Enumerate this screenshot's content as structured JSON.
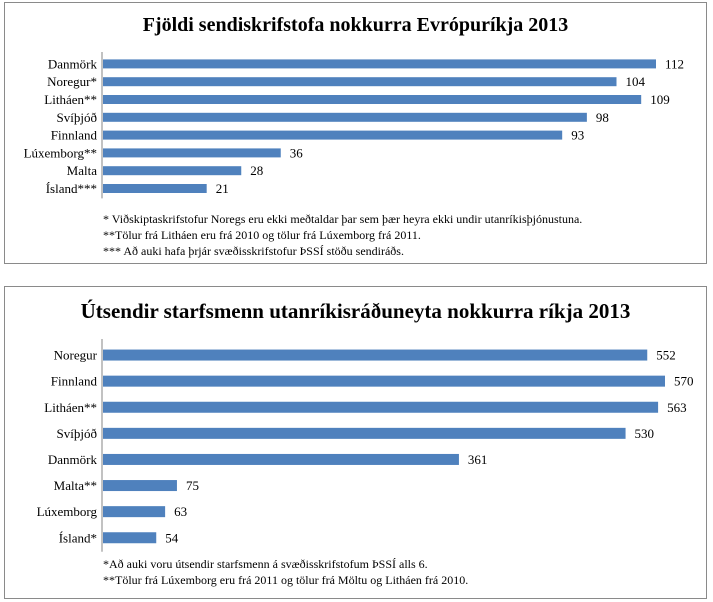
{
  "chart_data": [
    {
      "type": "bar",
      "orientation": "horizontal",
      "title": "Fjöldi sendiskrifstofa nokkurra Evrópuríkja 2013",
      "categories": [
        "Danmörk",
        "Noregur*",
        "Litháen**",
        "Svíþjóð",
        "Finnland",
        "Lúxemborg**",
        "Malta",
        "Ísland***"
      ],
      "values": [
        112,
        104,
        109,
        98,
        93,
        36,
        28,
        21
      ],
      "xlim": [
        0,
        112
      ],
      "grid": false,
      "legend": "none",
      "bar_color": "#4f81bd",
      "notes": [
        "* Viðskiptaskrifstofur Noregs eru ekki meðtaldar þar sem þær heyra ekki undir utanríkisþjónustuna.",
        "**Tölur frá Litháen eru frá 2010 og tölur frá Lúxemborg  frá 2011.",
        "*** Að auki hafa þrjár svæðisskrifstofur ÞSSÍ stöðu sendiráðs."
      ]
    },
    {
      "type": "bar",
      "orientation": "horizontal",
      "title": "Útsendir starfsmenn utanríkisráðuneyta nokkurra ríkja 2013",
      "categories": [
        "Noregur",
        "Finnland",
        "Litháen**",
        "Svíþjóð",
        "Danmörk",
        "Malta**",
        "Lúxemborg",
        "Ísland*"
      ],
      "values": [
        552,
        570,
        563,
        530,
        361,
        75,
        63,
        54
      ],
      "xlim": [
        0,
        570
      ],
      "grid": false,
      "legend": "none",
      "bar_color": "#4f81bd",
      "notes": [
        "*Að auki voru útsendir starfsmenn á svæðisskrifstofum ÞSSÍ alls 6.",
        "**Tölur frá Lúxemborg  eru frá 2011 og tölur frá Möltu og Litháen frá 2010."
      ]
    }
  ]
}
